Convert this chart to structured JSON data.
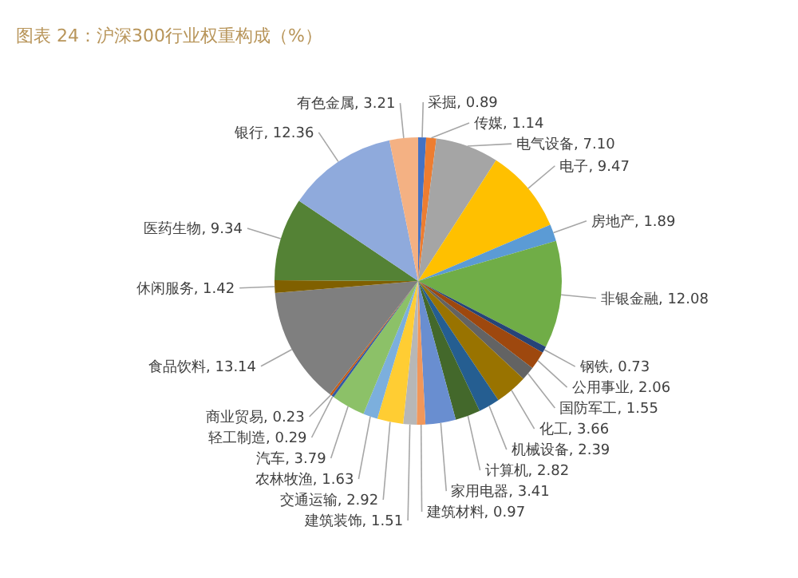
{
  "chart_data": {
    "type": "pie",
    "title": "图表 24：沪深300行业权重构成（%）",
    "categories": [
      "采掘",
      "传媒",
      "电气设备",
      "电子",
      "房地产",
      "非银金融",
      "钢铁",
      "公用事业",
      "国防军工",
      "化工",
      "机械设备",
      "计算机",
      "家用电器",
      "建筑材料",
      "建筑装饰",
      "交通运输",
      "农林牧渔",
      "汽车",
      "轻工制造",
      "商业贸易",
      "食品饮料",
      "休闲服务",
      "医药生物",
      "银行",
      "有色金属"
    ],
    "values": [
      0.89,
      1.14,
      7.1,
      9.47,
      1.89,
      12.08,
      0.73,
      2.06,
      1.55,
      3.66,
      2.39,
      2.82,
      3.41,
      0.97,
      1.51,
      2.92,
      1.63,
      3.79,
      0.29,
      0.23,
      13.14,
      1.42,
      9.34,
      12.36,
      3.21
    ],
    "value_labels": [
      "0.89",
      "1.14",
      "7.10",
      "9.47",
      "1.89",
      "12.08",
      "0.73",
      "2.06",
      "1.55",
      "3.66",
      "2.39",
      "2.82",
      "3.41",
      "0.97",
      "1.51",
      "2.92",
      "1.63",
      "3.79",
      "0.29",
      "0.23",
      "13.14",
      "1.42",
      "9.34",
      "12.36",
      "3.21"
    ],
    "colors": [
      "#4472c4",
      "#ed7d31",
      "#a5a5a5",
      "#ffc000",
      "#5b9bd5",
      "#70ad47",
      "#264478",
      "#9e480e",
      "#636363",
      "#997300",
      "#255e91",
      "#43682b",
      "#698ed0",
      "#f1975a",
      "#b7b7b7",
      "#ffcd33",
      "#7cafdd",
      "#8cc168",
      "#335aa1",
      "#c65911",
      "#7f7f7f",
      "#806000",
      "#548235",
      "#8faadc",
      "#f4b183"
    ]
  }
}
